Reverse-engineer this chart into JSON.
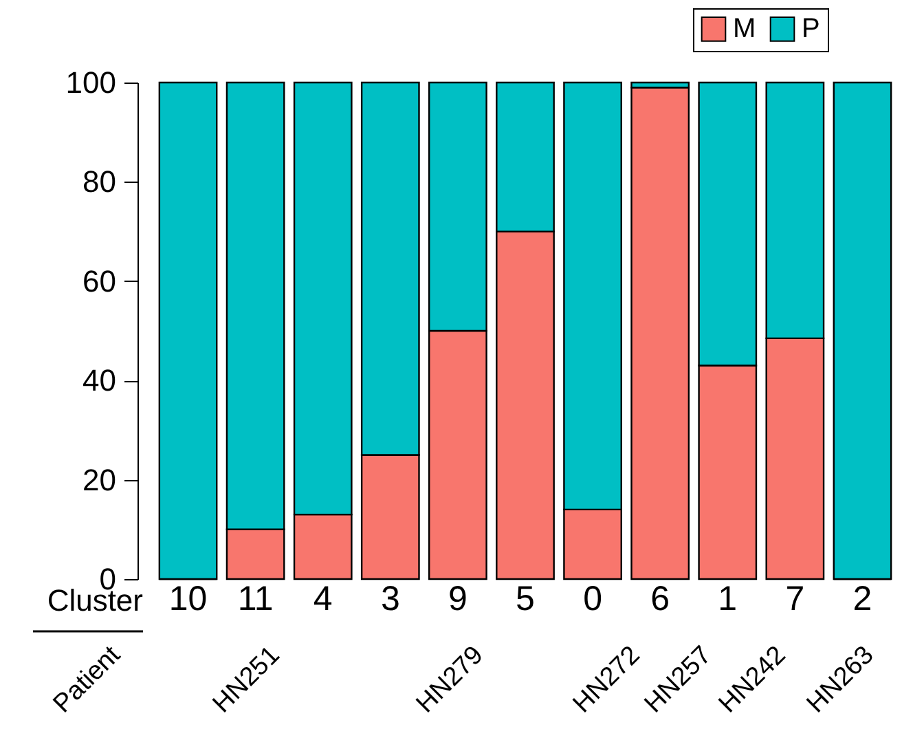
{
  "chart_data": {
    "type": "bar",
    "stacked": true,
    "xlabel": "Cluster",
    "categories": [
      "10",
      "11",
      "4",
      "3",
      "9",
      "5",
      "0",
      "6",
      "1",
      "7",
      "2"
    ],
    "series": [
      {
        "name": "M",
        "color": "#f8766d",
        "values": [
          0,
          10,
          13,
          25,
          50,
          70,
          14,
          99,
          43,
          48.5,
          0
        ]
      },
      {
        "name": "P",
        "color": "#00bfc4",
        "values": [
          100,
          90,
          87,
          75,
          50,
          30,
          86,
          1,
          57,
          51.5,
          100
        ]
      }
    ],
    "ylim": [
      0,
      100
    ],
    "yticks": [
      0,
      20,
      40,
      60,
      80,
      100
    ],
    "grid": false,
    "legend": "top right",
    "annotations": [
      "Patient",
      "HN251",
      "HN279",
      "HN272",
      "HN257",
      "HN242",
      "HN263"
    ]
  }
}
